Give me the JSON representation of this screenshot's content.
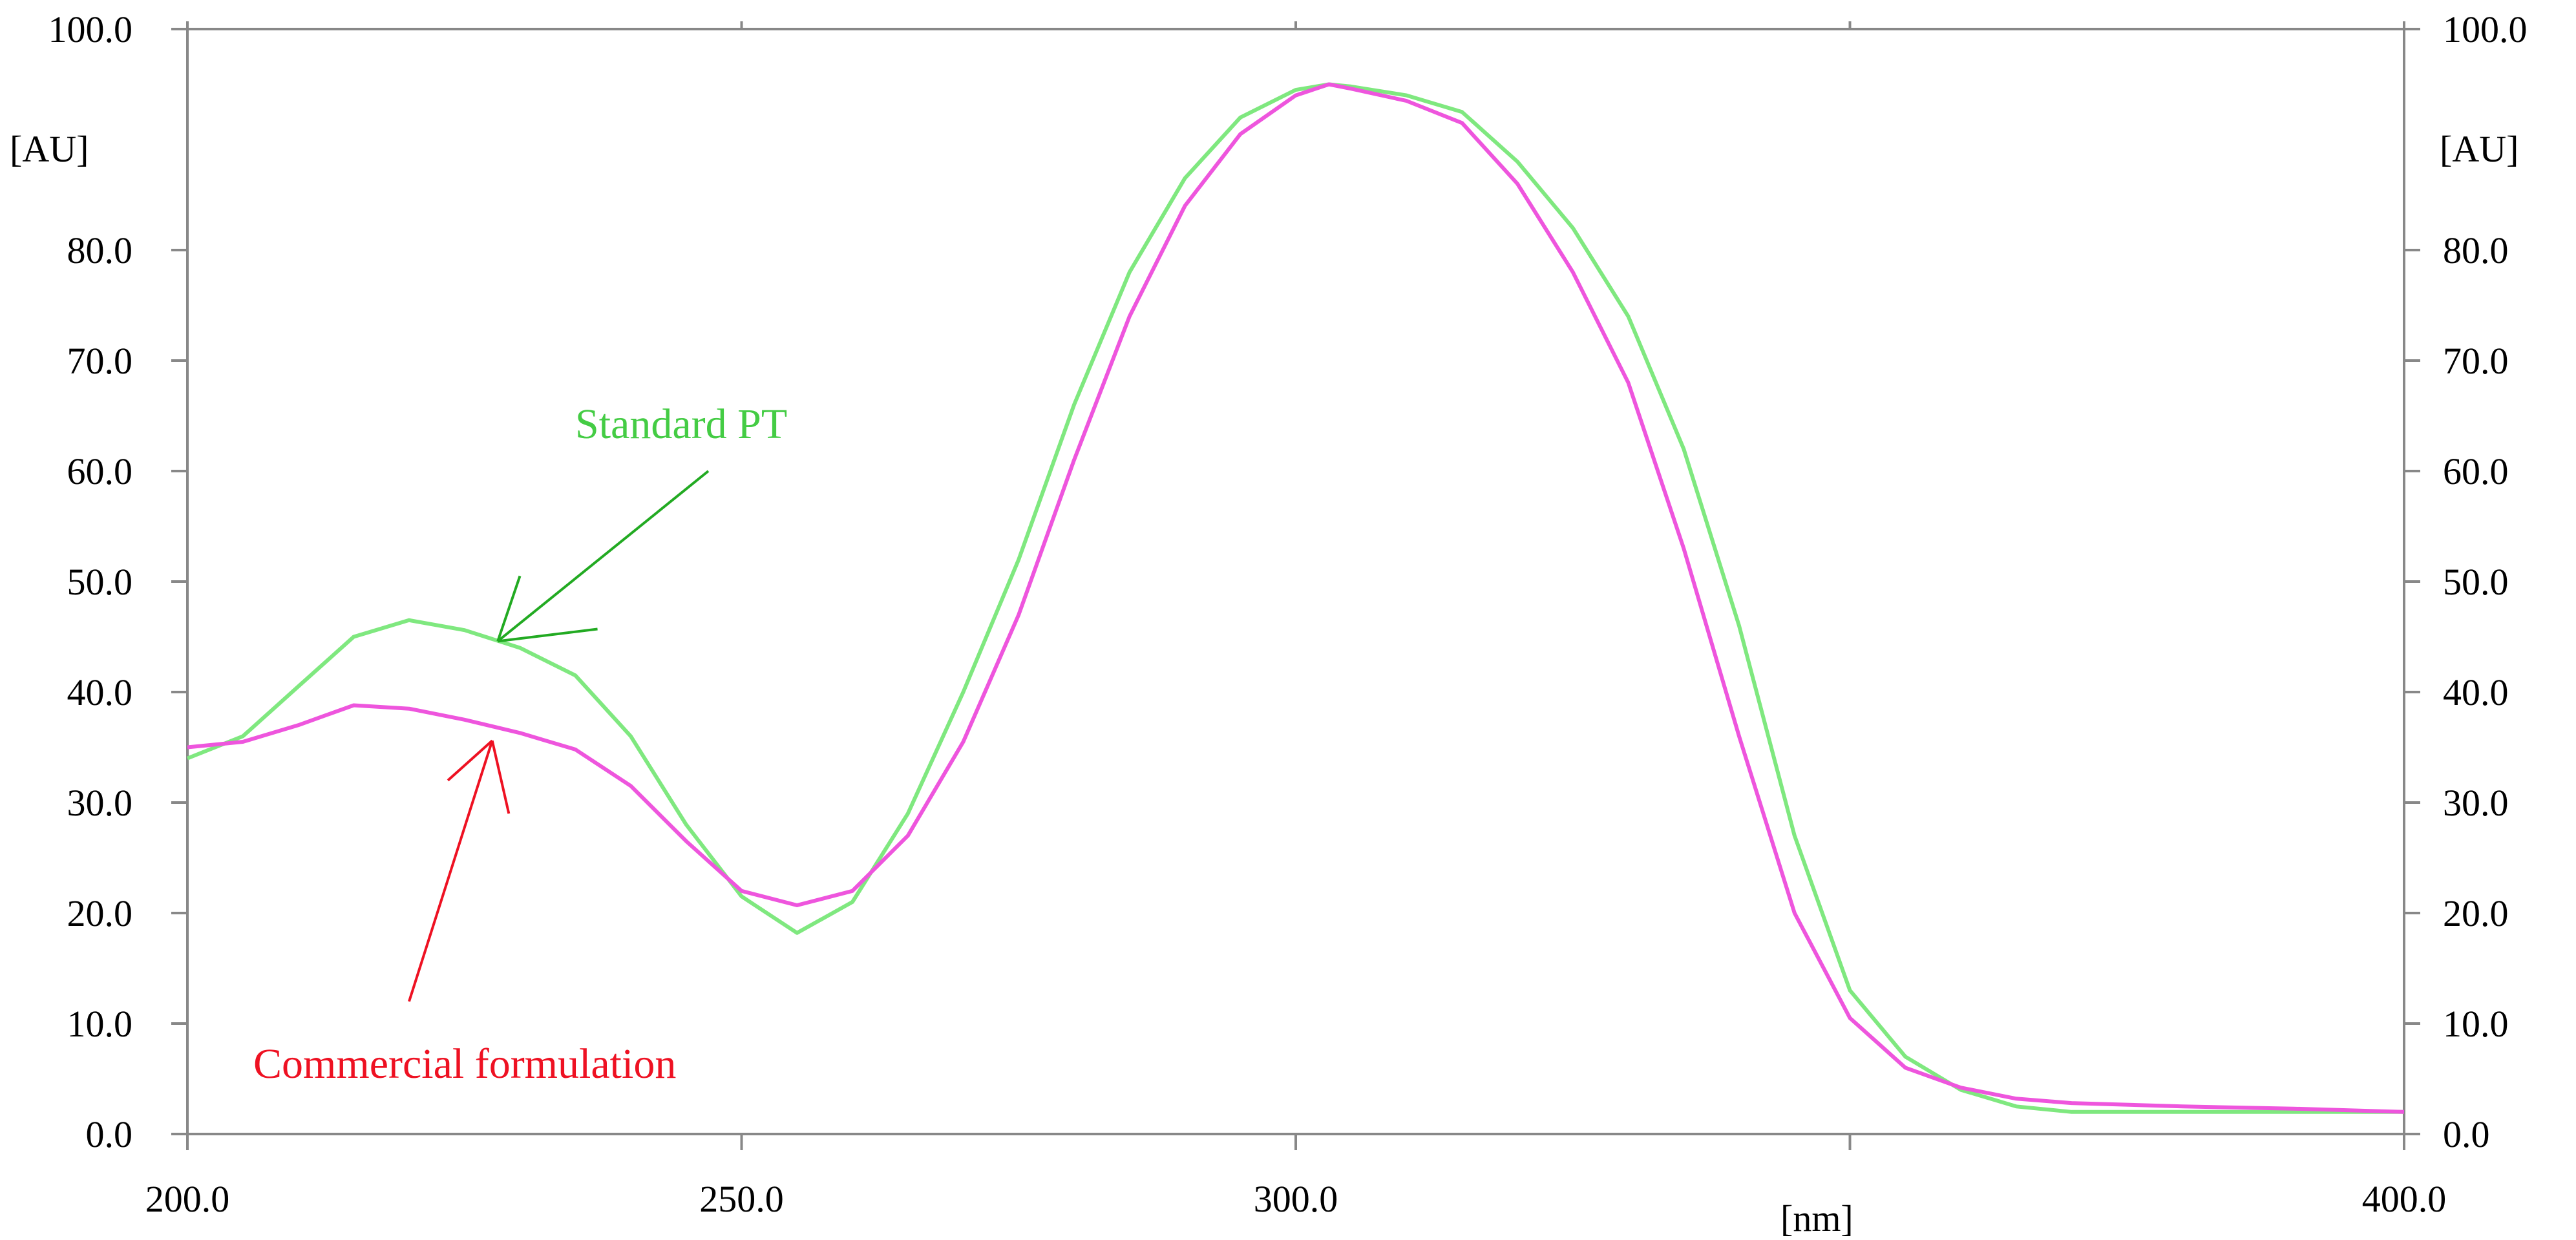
{
  "chart_data": {
    "type": "line",
    "title": "",
    "xlabel": "[nm]",
    "ylabel_left": "[AU]",
    "ylabel_right": "[AU]",
    "xlim": [
      200,
      400
    ],
    "ylim": [
      0,
      100
    ],
    "x_ticks": [
      {
        "value": 200,
        "label": "200.0"
      },
      {
        "value": 250,
        "label": "250.0"
      },
      {
        "value": 300,
        "label": "300.0"
      },
      {
        "value": 400,
        "label": "400.0"
      }
    ],
    "y_ticks": [
      {
        "value": 0,
        "label": "0.0"
      },
      {
        "value": 10,
        "label": "10.0"
      },
      {
        "value": 20,
        "label": "20.0"
      },
      {
        "value": 30,
        "label": "30.0"
      },
      {
        "value": 40,
        "label": "40.0"
      },
      {
        "value": 50,
        "label": "50.0"
      },
      {
        "value": 60,
        "label": "60.0"
      },
      {
        "value": 70,
        "label": "70.0"
      },
      {
        "value": 80,
        "label": "80.0"
      },
      {
        "value": 100,
        "label": "100.0"
      }
    ],
    "grid": false,
    "series": [
      {
        "name": "Standard PT",
        "color": "#7fe87f",
        "points": [
          [
            200,
            34
          ],
          [
            205,
            36
          ],
          [
            210,
            40.5
          ],
          [
            215,
            45
          ],
          [
            220,
            46.5
          ],
          [
            225,
            45.6
          ],
          [
            230,
            44
          ],
          [
            235,
            41.5
          ],
          [
            240,
            36
          ],
          [
            245,
            28
          ],
          [
            250,
            21.5
          ],
          [
            255,
            18.2
          ],
          [
            260,
            21
          ],
          [
            265,
            29
          ],
          [
            270,
            40
          ],
          [
            275,
            52
          ],
          [
            280,
            66
          ],
          [
            285,
            78
          ],
          [
            290,
            86.5
          ],
          [
            295,
            92
          ],
          [
            300,
            94.5
          ],
          [
            303,
            95
          ],
          [
            305,
            94.8
          ],
          [
            310,
            94
          ],
          [
            315,
            92.5
          ],
          [
            320,
            88
          ],
          [
            325,
            82
          ],
          [
            330,
            74
          ],
          [
            335,
            62
          ],
          [
            340,
            46
          ],
          [
            345,
            27
          ],
          [
            350,
            13
          ],
          [
            355,
            7
          ],
          [
            360,
            4
          ],
          [
            365,
            2.5
          ],
          [
            370,
            2
          ],
          [
            380,
            2
          ],
          [
            390,
            2
          ],
          [
            400,
            2
          ]
        ]
      },
      {
        "name": "Commercial formulation",
        "color": "#ee55dd",
        "points": [
          [
            200,
            35
          ],
          [
            205,
            35.5
          ],
          [
            210,
            37
          ],
          [
            215,
            38.8
          ],
          [
            220,
            38.5
          ],
          [
            225,
            37.5
          ],
          [
            230,
            36.3
          ],
          [
            235,
            34.8
          ],
          [
            240,
            31.5
          ],
          [
            245,
            26.5
          ],
          [
            250,
            22
          ],
          [
            255,
            20.7
          ],
          [
            260,
            22
          ],
          [
            265,
            27
          ],
          [
            270,
            35.5
          ],
          [
            275,
            47
          ],
          [
            280,
            61
          ],
          [
            285,
            74
          ],
          [
            290,
            84
          ],
          [
            295,
            90.5
          ],
          [
            300,
            94
          ],
          [
            303,
            95
          ],
          [
            305,
            94.6
          ],
          [
            310,
            93.5
          ],
          [
            315,
            91.5
          ],
          [
            320,
            86
          ],
          [
            325,
            78
          ],
          [
            330,
            68
          ],
          [
            335,
            53
          ],
          [
            340,
            36
          ],
          [
            345,
            20
          ],
          [
            350,
            10.5
          ],
          [
            355,
            6
          ],
          [
            360,
            4.2
          ],
          [
            365,
            3.2
          ],
          [
            370,
            2.8
          ],
          [
            380,
            2.5
          ],
          [
            390,
            2.3
          ],
          [
            400,
            2
          ]
        ]
      }
    ],
    "annotations": [
      {
        "text": "Standard PT",
        "color": "#44cc44",
        "arrow_color": "#22aa22"
      },
      {
        "text": "Commercial formulation",
        "color": "#ee1122",
        "arrow_color": "#ee1122"
      }
    ]
  }
}
